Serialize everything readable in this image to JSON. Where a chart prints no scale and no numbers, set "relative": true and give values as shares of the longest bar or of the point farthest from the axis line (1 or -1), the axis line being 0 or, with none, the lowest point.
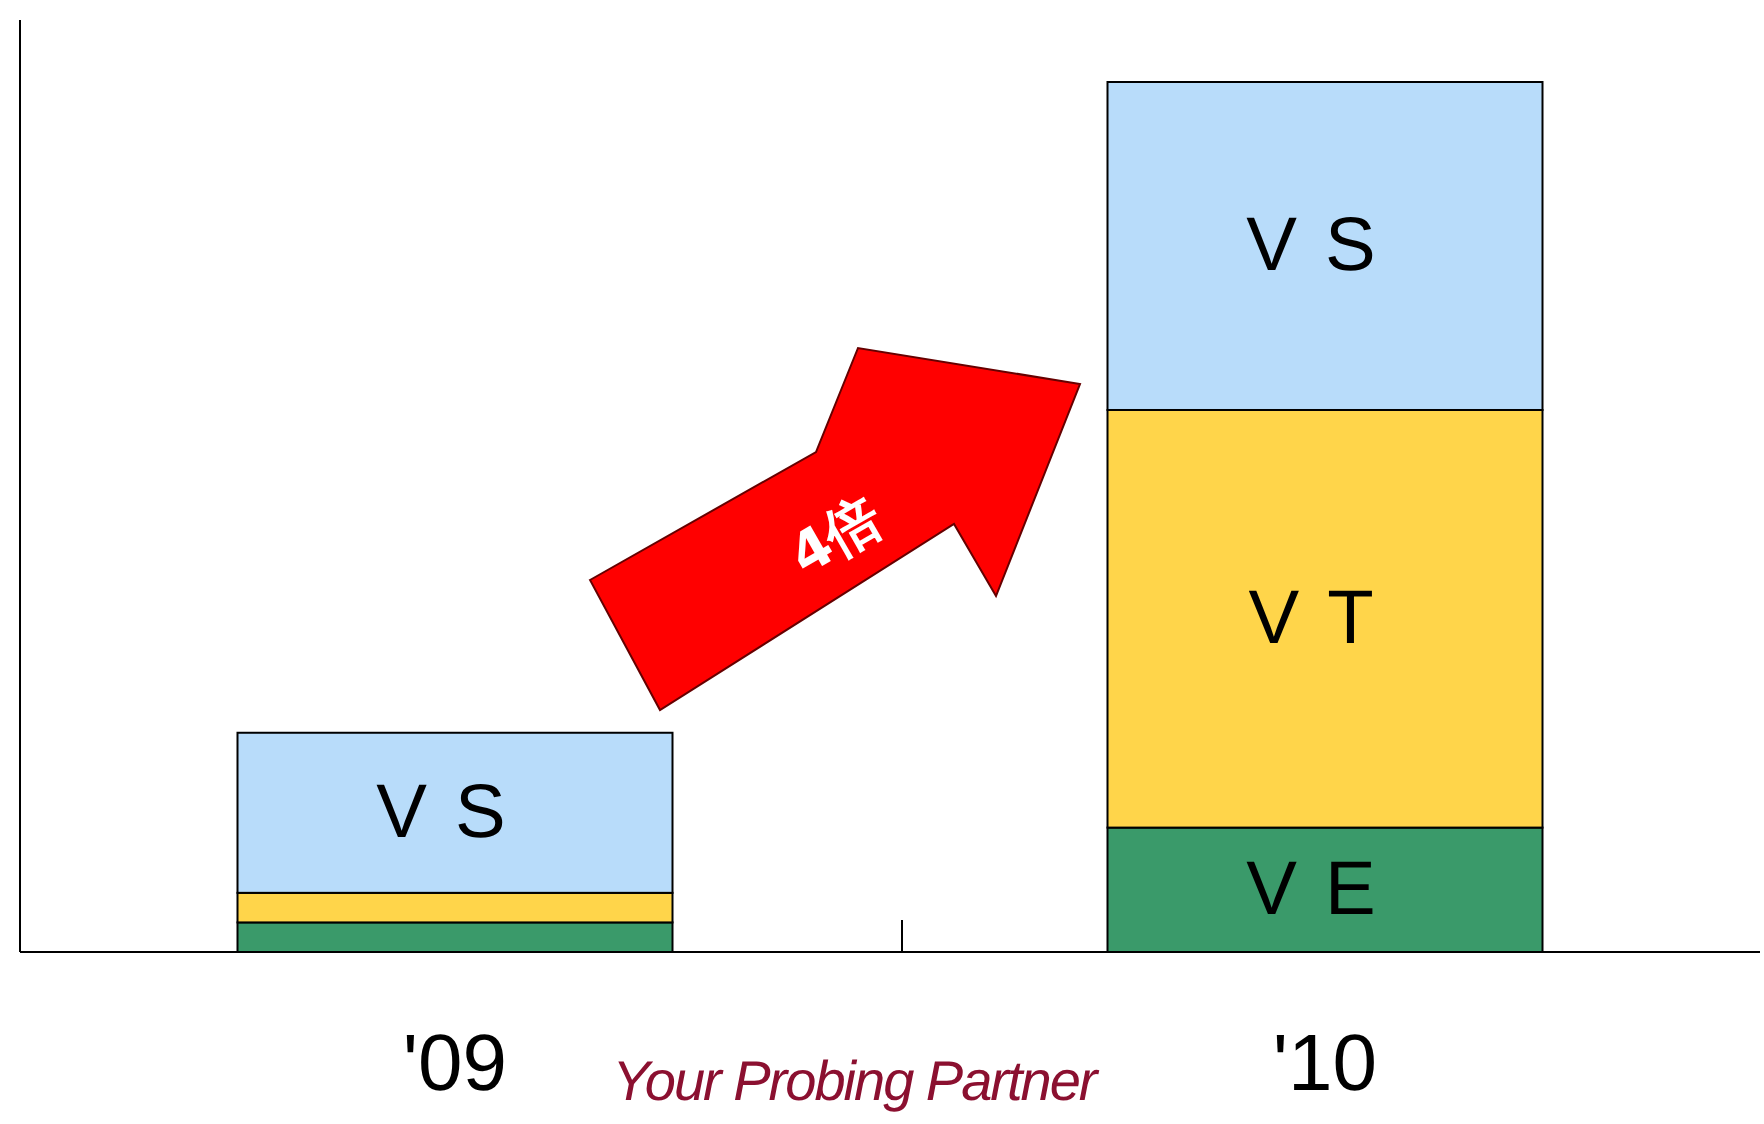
{
  "chart_data": {
    "type": "bar",
    "stacked": true,
    "relative": true,
    "categories": [
      "'09",
      "'10"
    ],
    "series": [
      {
        "name": "VE",
        "color": "#3a9a6a",
        "values": [
          0.034,
          0.143
        ]
      },
      {
        "name": "VT",
        "color": "#ffd54a",
        "values": [
          0.034,
          0.48
        ]
      },
      {
        "name": "VS",
        "color": "#b8dcfa",
        "values": [
          0.184,
          0.377
        ]
      }
    ],
    "annotations": [
      "4倍",
      "Your Probing Partner"
    ]
  }
}
